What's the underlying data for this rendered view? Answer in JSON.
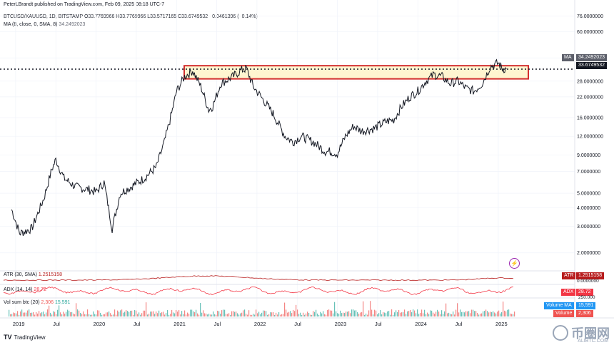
{
  "header": {
    "publisher": "PeterLBrandt published on TradingView.com, Feb 09, 2025 08:18 UTC-7"
  },
  "legend": {
    "symbol": "BTCUSD/XAUUSD, 1D, BITSTAMP",
    "ohlc": "O33.7769966 H33.7769966 L33.5717165 C33.6749532 −0.0461396 (−0.14%)",
    "ma_label": "MA (8, close, 0, SMA, 8)",
    "ma_value": "34.2492023"
  },
  "right_labels": {
    "ma_tag": "MA",
    "ma_price": "34.2492023",
    "last_price": "33.6749532",
    "atr_tag": "ATR",
    "atr_value": "1.2515158",
    "adx_tag": "ADX",
    "adx_value": "28.72",
    "vol_ma_tag": "Volume MA",
    "vol_ma_value": "15,591",
    "vol_tag": "Volume",
    "vol_value": "2,306",
    "atr_axis": "0.0000000",
    "adx_axis": "250.000"
  },
  "panes": {
    "atr": {
      "label": "ATR (30, SMA)",
      "value": "1.2515158"
    },
    "adx": {
      "label": "ADX (14, 14)",
      "value": "28.72"
    },
    "vol": {
      "label": "Vol sum btc (20)",
      "value1": "2,306",
      "value2": "15,591"
    }
  },
  "footer": {
    "brand": "TradingView"
  },
  "watermark": {
    "text": "币圈网",
    "sub": "ALIBTC.COM"
  },
  "colors": {
    "price": "#131722",
    "atr": "#b71c1c",
    "adx": "#f23645",
    "vol_up": "#26a69a",
    "vol_down": "#ef5350",
    "box": "#d32f2f",
    "box_fill": "#fff3c4",
    "ma_tag": "#5d606b",
    "vol_ma_badge": "#2196f3"
  },
  "chart_data": {
    "type": "line",
    "title": "BTCUSD/XAUUSD, 1D, BITSTAMP",
    "scale": "log",
    "y_ticks": [
      2,
      3,
      4,
      5,
      7,
      9,
      12,
      16,
      22,
      28,
      40,
      60,
      76
    ],
    "y_tick_labels": [
      "2.0000000",
      "3.0000000",
      "4.0000000",
      "5.0000000",
      "7.0000000",
      "9.0000000",
      "12.0000000",
      "16.0000000",
      "22.0000000",
      "28.0000000",
      "40.0000000",
      "60.0000000",
      "76.0000000"
    ],
    "x_labels": [
      "2019",
      "Jul",
      "2020",
      "Jul",
      "2021",
      "Jul",
      "2022",
      "Jul",
      "2023",
      "Jul",
      "2024",
      "Jul",
      "2025"
    ],
    "x": [
      2018.95,
      2019.05,
      2019.2,
      2019.35,
      2019.45,
      2019.5,
      2019.6,
      2019.75,
      2019.9,
      2020.0,
      2020.1,
      2020.2,
      2020.3,
      2020.45,
      2020.6,
      2020.75,
      2020.85,
      2020.95,
      2021.0,
      2021.1,
      2021.2,
      2021.3,
      2021.4,
      2021.45,
      2021.55,
      2021.7,
      2021.8,
      2021.87,
      2021.95,
      2022.05,
      2022.2,
      2022.35,
      2022.45,
      2022.55,
      2022.7,
      2022.85,
      2022.9,
      2023.0,
      2023.1,
      2023.2,
      2023.3,
      2023.45,
      2023.6,
      2023.7,
      2023.8,
      2023.9,
      2024.0,
      2024.1,
      2024.2,
      2024.3,
      2024.4,
      2024.5,
      2024.6,
      2024.7,
      2024.8,
      2024.9,
      2025.0,
      2025.05,
      2025.1
    ],
    "y": [
      3.9,
      2.7,
      2.9,
      4.6,
      7.2,
      8.4,
      6.3,
      5.5,
      5.3,
      5.1,
      5.9,
      2.9,
      5.0,
      5.6,
      6.3,
      7.5,
      11,
      18,
      24,
      30,
      33,
      26,
      18,
      19,
      27,
      30,
      33,
      34,
      26,
      22,
      17,
      12,
      11,
      12,
      11,
      9.5,
      9.5,
      9.2,
      12,
      14,
      13,
      13.5,
      15,
      15.5,
      19,
      22,
      24,
      28,
      31,
      30,
      27,
      28,
      25,
      24,
      27,
      35,
      37,
      34,
      33.67
    ],
    "ma_value": 34.2492023,
    "last_value": 33.6749532,
    "resistance_box": {
      "y_low": 29.0,
      "y_high": 35.5,
      "x_start": 2018.95,
      "x_end": 2025.15
    }
  }
}
